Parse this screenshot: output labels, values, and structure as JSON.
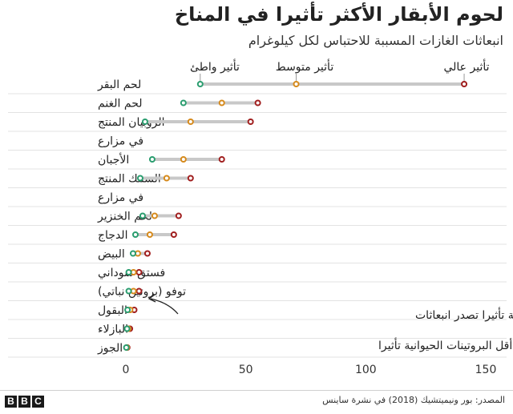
{
  "header": {
    "title": "لحوم الأبقار الأكثر تأثيرا في المناخ",
    "subtitle": "انبعاثات الغازات المسببة للاحتباس لكل كيلوغرام"
  },
  "footer": {
    "source": "المصدر: بور ونيميتشيك (2018) في نشرة ساينس",
    "logo": [
      "B",
      "B",
      "C"
    ]
  },
  "annotations": {
    "plant_note_line1": "أكثر البروتينات النباتية تأثيرا تصدر انبعاثات",
    "plant_note_line2": "أقل من أقل البروتينات الحيوانية تأثيرا"
  },
  "colors": {
    "low": "#2a9d6f",
    "mid": "#d68a1c",
    "high": "#a01e1e",
    "range_line": "#c8c8c8",
    "grid": "#e3e3e3"
  },
  "chart_data": {
    "type": "dot-range",
    "title": "لحوم الأبقار الأكثر تأثيرا في المناخ",
    "subtitle": "انبعاثات الغازات المسببة للاحتباس لكل كيلوغرام",
    "xlim": [
      0,
      150
    ],
    "x_ticks": [
      0,
      50,
      100,
      150
    ],
    "grid": true,
    "series_labels": {
      "low": "تأثير واطئ",
      "mid": "تأثير متوسط",
      "high": "تأثير عالي"
    },
    "rows": [
      {
        "label": "لحم البقر",
        "low": 31,
        "mid": 71,
        "high": 141
      },
      {
        "label": "لحم الغنم",
        "low": 24,
        "mid": 40,
        "high": 55
      },
      {
        "label": "الروبيان المنتج",
        "low": 8,
        "mid": 27,
        "high": 52
      },
      {
        "label": "في مزارع",
        "low": null,
        "mid": null,
        "high": null
      },
      {
        "label": "الأجبان",
        "low": 11,
        "mid": 24,
        "high": 40
      },
      {
        "label": "السمك المنتج",
        "low": 6,
        "mid": 17,
        "high": 27
      },
      {
        "label": "في مزارع",
        "low": null,
        "mid": null,
        "high": null
      },
      {
        "label": "لحم الخنزير",
        "low": 7,
        "mid": 12,
        "high": 22
      },
      {
        "label": "الدجاج",
        "low": 4,
        "mid": 10,
        "high": 20
      },
      {
        "label": "البيض",
        "low": 3,
        "mid": 5,
        "high": 9
      },
      {
        "label": "فستق سوداني",
        "low": 1.2,
        "mid": 3.2,
        "high": 5.5
      },
      {
        "label": "توفو (بروتين نباتي)",
        "low": 1.2,
        "mid": 3.2,
        "high": 5.5
      },
      {
        "label": "البقول",
        "low": 0.7,
        "mid": 1.8,
        "high": 3.5
      },
      {
        "label": "البازلاء",
        "low": 0.5,
        "mid": 1,
        "high": 1.7
      },
      {
        "label": "الجوز",
        "low": 0.2,
        "mid": 0.4,
        "high": 0.6
      }
    ]
  }
}
